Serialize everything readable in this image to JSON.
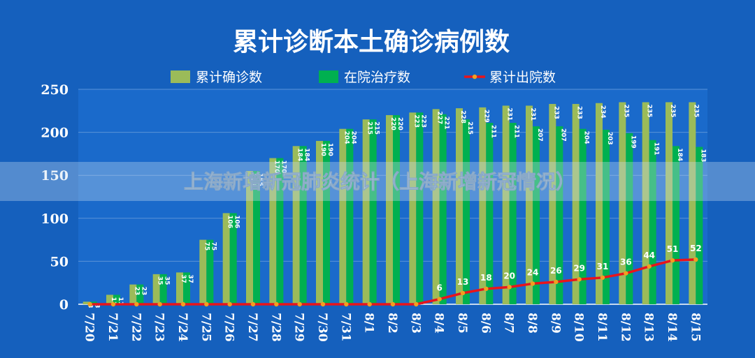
{
  "chart_data": {
    "type": "bar",
    "title": "累计诊断本土确诊病例数",
    "categories": [
      "7/20",
      "7/21",
      "7/22",
      "7/23",
      "7/24",
      "7/25",
      "7/26",
      "7/27",
      "7/28",
      "7/29",
      "7/30",
      "7/31",
      "8/1",
      "8/2",
      "8/3",
      "8/4",
      "8/5",
      "8/6",
      "8/7",
      "8/8",
      "8/9",
      "8/10",
      "8/11",
      "8/12",
      "8/13",
      "8/14",
      "8/15"
    ],
    "series": [
      {
        "name": "累计确诊数",
        "type": "bar",
        "color": "#9bbb59",
        "values": [
          3,
          11,
          23,
          35,
          37,
          75,
          106,
          155,
          170,
          184,
          190,
          204,
          215,
          220,
          223,
          227,
          228,
          229,
          231,
          231,
          233,
          233,
          234,
          235,
          235,
          235,
          235
        ]
      },
      {
        "name": "在院治疗数",
        "type": "bar",
        "color": "#00b050",
        "values": [
          3,
          11,
          23,
          35,
          37,
          75,
          106,
          155,
          170,
          184,
          190,
          204,
          215,
          220,
          223,
          221,
          215,
          211,
          211,
          207,
          207,
          204,
          203,
          199,
          191,
          184,
          183
        ]
      },
      {
        "name": "累计出院数",
        "type": "line",
        "color": "#e8141c",
        "values": [
          0,
          0,
          0,
          0,
          0,
          0,
          0,
          0,
          0,
          0,
          0,
          0,
          0,
          0,
          0,
          6,
          13,
          18,
          20,
          24,
          26,
          29,
          31,
          36,
          44,
          51,
          52
        ]
      }
    ],
    "ylim": [
      0,
      250
    ],
    "yticks": [
      "0",
      "50",
      "100",
      "150",
      "200",
      "250"
    ],
    "grid": true,
    "legend_position": "top"
  },
  "overlay": {
    "banner_text": "上海新增新冠肺炎统计（上海新增新冠情况）"
  },
  "colors": {
    "background": "#1560bd",
    "plot_background": "#1a6acb",
    "banner": "#c8dcf0"
  }
}
